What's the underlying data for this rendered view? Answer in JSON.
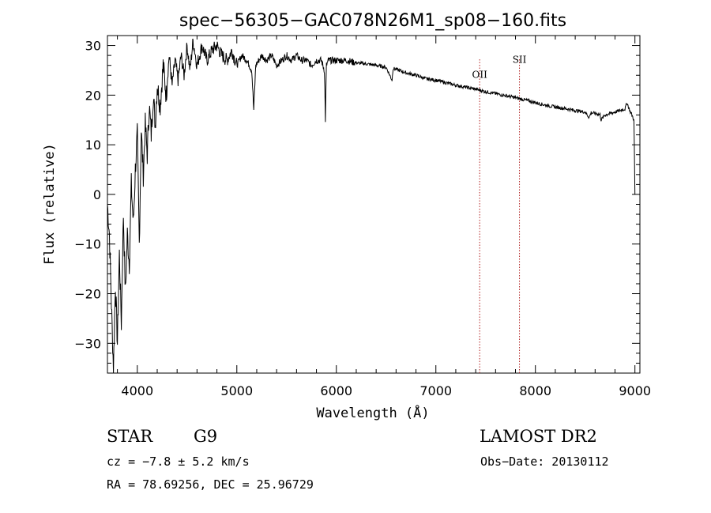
{
  "chart_data": {
    "type": "line",
    "title": "spec−56305−GAC078N26M1_sp08−160.fits",
    "xlabel": "Wavelength (Å)",
    "ylabel": "Flux (relative)",
    "xlim": [
      3700,
      9050
    ],
    "ylim": [
      -36,
      32
    ],
    "xticks": [
      4000,
      5000,
      6000,
      7000,
      8000,
      9000
    ],
    "xtick_labels": [
      "4000",
      "5000",
      "6000",
      "7000",
      "8000",
      "9000"
    ],
    "yticks": [
      -30,
      -20,
      -10,
      0,
      10,
      20,
      30
    ],
    "ytick_labels": [
      "−30",
      "−20",
      "−10",
      "0",
      "10",
      "20",
      "30"
    ],
    "grid": false,
    "series": [
      {
        "x": [
          3700,
          3720,
          3740,
          3760,
          3780,
          3800,
          3820,
          3840,
          3860,
          3880,
          3900,
          3920,
          3940,
          3960,
          3980,
          4000,
          4020,
          4040,
          4060,
          4080,
          4100,
          4120,
          4140,
          4160,
          4180,
          4200,
          4230,
          4260,
          4290,
          4320,
          4350,
          4380,
          4410,
          4440,
          4470,
          4500,
          4530,
          4560,
          4600,
          4650,
          4700,
          4750,
          4800,
          4850,
          4900,
          4950,
          5000,
          5050,
          5100,
          5150,
          5170,
          5190,
          5250,
          5300,
          5350,
          5400,
          5450,
          5500,
          5550,
          5600,
          5650,
          5700,
          5750,
          5800,
          5850,
          5880,
          5890,
          5900,
          5920,
          5950,
          6000,
          6100,
          6200,
          6300,
          6400,
          6500,
          6560,
          6570,
          6600,
          6700,
          6800,
          6900,
          7000,
          7100,
          7200,
          7300,
          7400,
          7500,
          7600,
          7700,
          7800,
          7900,
          8000,
          8100,
          8200,
          8300,
          8400,
          8500,
          8540,
          8560,
          8600,
          8650,
          8660,
          8700,
          8750,
          8800,
          8850,
          8900,
          8920,
          8950,
          8970,
          8990,
          9000
        ],
        "y": [
          -2,
          -8,
          -22,
          -35,
          -18,
          -30,
          -12,
          -26,
          -4,
          -20,
          -8,
          -14,
          2,
          -6,
          5,
          12,
          -10,
          13,
          4,
          14,
          8,
          18,
          12,
          20,
          14,
          22,
          18,
          26,
          20,
          28,
          22,
          27,
          23,
          28,
          24,
          30,
          25,
          31,
          26,
          30,
          27,
          29,
          30,
          28,
          27,
          29,
          26,
          28,
          27,
          25,
          17,
          26,
          28,
          27,
          28,
          26,
          27,
          28,
          27,
          28,
          27,
          27,
          26,
          27,
          27,
          25,
          15,
          26,
          27,
          27,
          27,
          27,
          26.5,
          26.3,
          26,
          25.6,
          23,
          25.4,
          25.2,
          24.5,
          24,
          23.3,
          23,
          22.5,
          22,
          21.6,
          21.2,
          20.7,
          20.3,
          19.9,
          19.5,
          19,
          18.5,
          18,
          17.6,
          17.3,
          16.9,
          16.6,
          15.5,
          16.5,
          16.3,
          16.1,
          15,
          16,
          16.3,
          16.6,
          16.9,
          17.2,
          18.5,
          16.8,
          16,
          15,
          0
        ]
      }
    ],
    "annotations": [
      {
        "label": "OII",
        "x": 7440,
        "label_y": 23.5
      },
      {
        "label": "SII",
        "x": 7840,
        "label_y": 26.5
      }
    ]
  },
  "info": {
    "object_type": "STAR",
    "subclass": "G9",
    "survey": "LAMOST DR2",
    "cz": "cz = −7.8 ± 5.2 km/s",
    "obs_date": "Obs−Date: 20130112",
    "coords": "RA =  78.69256, DEC =  25.96729"
  }
}
